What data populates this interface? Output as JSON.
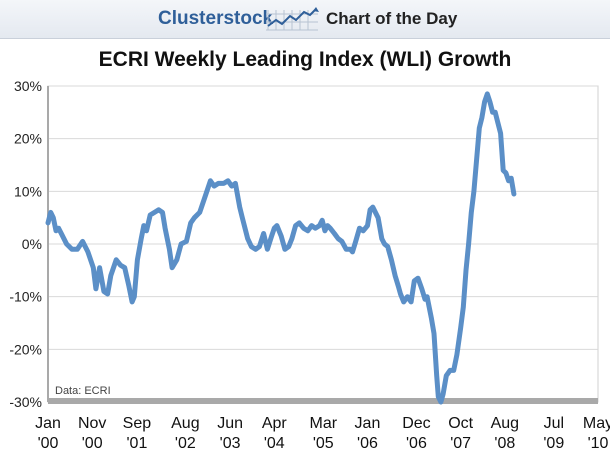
{
  "header": {
    "brand": "Clusterstock",
    "logo_icon": "rising-line-chart-icon",
    "subtitle": "Chart of the Day"
  },
  "chart_data": {
    "type": "line",
    "title": "ECRI Weekly Leading Index (WLI) Growth",
    "source": "Data: ECRI",
    "xlabel": "",
    "ylabel": "",
    "ylim": [
      -30,
      30
    ],
    "yticks": [
      -30,
      -20,
      -10,
      0,
      10,
      20,
      30
    ],
    "ytick_labels": [
      "-30%",
      "-20%",
      "-10%",
      "0%",
      "10%",
      "20%",
      "30%"
    ],
    "xticks": [
      {
        "t": 2000.0,
        "month": "Jan",
        "year": "'00"
      },
      {
        "t": 2000.83,
        "month": "Nov",
        "year": "'00"
      },
      {
        "t": 2001.67,
        "month": "Sep",
        "year": "'01"
      },
      {
        "t": 2002.58,
        "month": "Aug",
        "year": "'02"
      },
      {
        "t": 2003.42,
        "month": "Jun",
        "year": "'03"
      },
      {
        "t": 2004.25,
        "month": "Apr",
        "year": "'04"
      },
      {
        "t": 2005.17,
        "month": "Mar",
        "year": "'05"
      },
      {
        "t": 2006.0,
        "month": "Jan",
        "year": "'06"
      },
      {
        "t": 2006.92,
        "month": "Dec",
        "year": "'06"
      },
      {
        "t": 2007.75,
        "month": "Oct",
        "year": "'07"
      },
      {
        "t": 2008.58,
        "month": "Aug",
        "year": "'08"
      },
      {
        "t": 2009.5,
        "month": "Jul",
        "year": "'09"
      },
      {
        "t": 2010.33,
        "month": "May",
        "year": "'10"
      }
    ],
    "xlim": [
      2000.0,
      2010.33
    ],
    "series": [
      {
        "color": "#5b8fc7",
        "points": [
          [
            2000.0,
            4.0
          ],
          [
            2000.05,
            6.0
          ],
          [
            2000.1,
            5.0
          ],
          [
            2000.15,
            2.5
          ],
          [
            2000.2,
            3.0
          ],
          [
            2000.25,
            2.0
          ],
          [
            2000.35,
            0.0
          ],
          [
            2000.45,
            -1.0
          ],
          [
            2000.55,
            -1.0
          ],
          [
            2000.65,
            0.5
          ],
          [
            2000.75,
            -1.5
          ],
          [
            2000.85,
            -4.5
          ],
          [
            2000.9,
            -8.5
          ],
          [
            2000.97,
            -4.5
          ],
          [
            2001.05,
            -9.0
          ],
          [
            2001.12,
            -9.5
          ],
          [
            2001.18,
            -6.0
          ],
          [
            2001.28,
            -3.0
          ],
          [
            2001.36,
            -4.0
          ],
          [
            2001.44,
            -4.5
          ],
          [
            2001.52,
            -8.0
          ],
          [
            2001.58,
            -11.0
          ],
          [
            2001.62,
            -10.0
          ],
          [
            2001.68,
            -3.0
          ],
          [
            2001.75,
            1.0
          ],
          [
            2001.8,
            3.5
          ],
          [
            2001.85,
            2.5
          ],
          [
            2001.92,
            5.5
          ],
          [
            2002.0,
            6.0
          ],
          [
            2002.08,
            6.5
          ],
          [
            2002.15,
            6.0
          ],
          [
            2002.2,
            3.0
          ],
          [
            2002.28,
            -1.0
          ],
          [
            2002.33,
            -4.5
          ],
          [
            2002.42,
            -3.0
          ],
          [
            2002.5,
            0.0
          ],
          [
            2002.6,
            0.5
          ],
          [
            2002.68,
            4.0
          ],
          [
            2002.75,
            5.0
          ],
          [
            2002.85,
            6.0
          ],
          [
            2002.95,
            9.0
          ],
          [
            2003.05,
            12.0
          ],
          [
            2003.12,
            11.0
          ],
          [
            2003.2,
            11.5
          ],
          [
            2003.3,
            11.5
          ],
          [
            2003.38,
            12.0
          ],
          [
            2003.45,
            11.0
          ],
          [
            2003.52,
            11.5
          ],
          [
            2003.6,
            7.0
          ],
          [
            2003.65,
            5.0
          ],
          [
            2003.75,
            1.0
          ],
          [
            2003.82,
            -0.5
          ],
          [
            2003.9,
            -1.0
          ],
          [
            2003.97,
            -0.5
          ],
          [
            2004.05,
            2.0
          ],
          [
            2004.12,
            -1.0
          ],
          [
            2004.2,
            1.5
          ],
          [
            2004.25,
            3.0
          ],
          [
            2004.3,
            3.5
          ],
          [
            2004.38,
            1.5
          ],
          [
            2004.45,
            -1.0
          ],
          [
            2004.52,
            -0.5
          ],
          [
            2004.58,
            1.0
          ],
          [
            2004.65,
            3.5
          ],
          [
            2004.72,
            4.0
          ],
          [
            2004.8,
            3.0
          ],
          [
            2004.88,
            2.5
          ],
          [
            2004.95,
            3.5
          ],
          [
            2005.02,
            3.0
          ],
          [
            2005.1,
            3.5
          ],
          [
            2005.15,
            4.5
          ],
          [
            2005.2,
            2.5
          ],
          [
            2005.25,
            3.5
          ],
          [
            2005.3,
            3.0
          ],
          [
            2005.38,
            2.0
          ],
          [
            2005.45,
            1.0
          ],
          [
            2005.52,
            0.5
          ],
          [
            2005.6,
            -1.0
          ],
          [
            2005.68,
            -1.0
          ],
          [
            2005.72,
            -1.5
          ],
          [
            2005.78,
            0.5
          ],
          [
            2005.85,
            3.0
          ],
          [
            2005.92,
            2.5
          ],
          [
            2006.0,
            3.5
          ],
          [
            2006.05,
            6.5
          ],
          [
            2006.1,
            7.0
          ],
          [
            2006.15,
            6.0
          ],
          [
            2006.2,
            5.0
          ],
          [
            2006.27,
            1.0
          ],
          [
            2006.32,
            0.0
          ],
          [
            2006.38,
            -0.5
          ],
          [
            2006.45,
            -3.0
          ],
          [
            2006.52,
            -6.0
          ],
          [
            2006.58,
            -8.0
          ],
          [
            2006.62,
            -9.5
          ],
          [
            2006.68,
            -11.0
          ],
          [
            2006.75,
            -10.0
          ],
          [
            2006.82,
            -11.0
          ],
          [
            2006.88,
            -7.0
          ],
          [
            2006.95,
            -6.5
          ],
          [
            2007.02,
            -8.5
          ],
          [
            2007.08,
            -10.5
          ],
          [
            2007.12,
            -10.0
          ],
          [
            2007.2,
            -14.0
          ],
          [
            2007.25,
            -17.0
          ],
          [
            2007.3,
            -25.0
          ],
          [
            2007.33,
            -29.0
          ],
          [
            2007.38,
            -30.0
          ],
          [
            2007.42,
            -28.5
          ],
          [
            2007.48,
            -25.0
          ],
          [
            2007.55,
            -24.0
          ],
          [
            2007.62,
            -24.0
          ],
          [
            2007.68,
            -21.0
          ],
          [
            2007.75,
            -16.0
          ],
          [
            2007.8,
            -12.0
          ],
          [
            2007.85,
            -5.0
          ],
          [
            2007.9,
            0.0
          ],
          [
            2007.95,
            6.0
          ],
          [
            2008.0,
            10.0
          ],
          [
            2008.05,
            16.0
          ],
          [
            2008.1,
            22.0
          ],
          [
            2008.15,
            24.0
          ],
          [
            2008.2,
            27.0
          ],
          [
            2008.25,
            28.5
          ],
          [
            2008.3,
            27.0
          ],
          [
            2008.35,
            25.0
          ],
          [
            2008.4,
            25.0
          ],
          [
            2008.45,
            23.0
          ],
          [
            2008.5,
            21.0
          ],
          [
            2008.55,
            14.0
          ],
          [
            2008.6,
            13.5
          ],
          [
            2008.65,
            12.0
          ],
          [
            2008.7,
            12.5
          ],
          [
            2008.75,
            9.5
          ]
        ]
      }
    ]
  }
}
